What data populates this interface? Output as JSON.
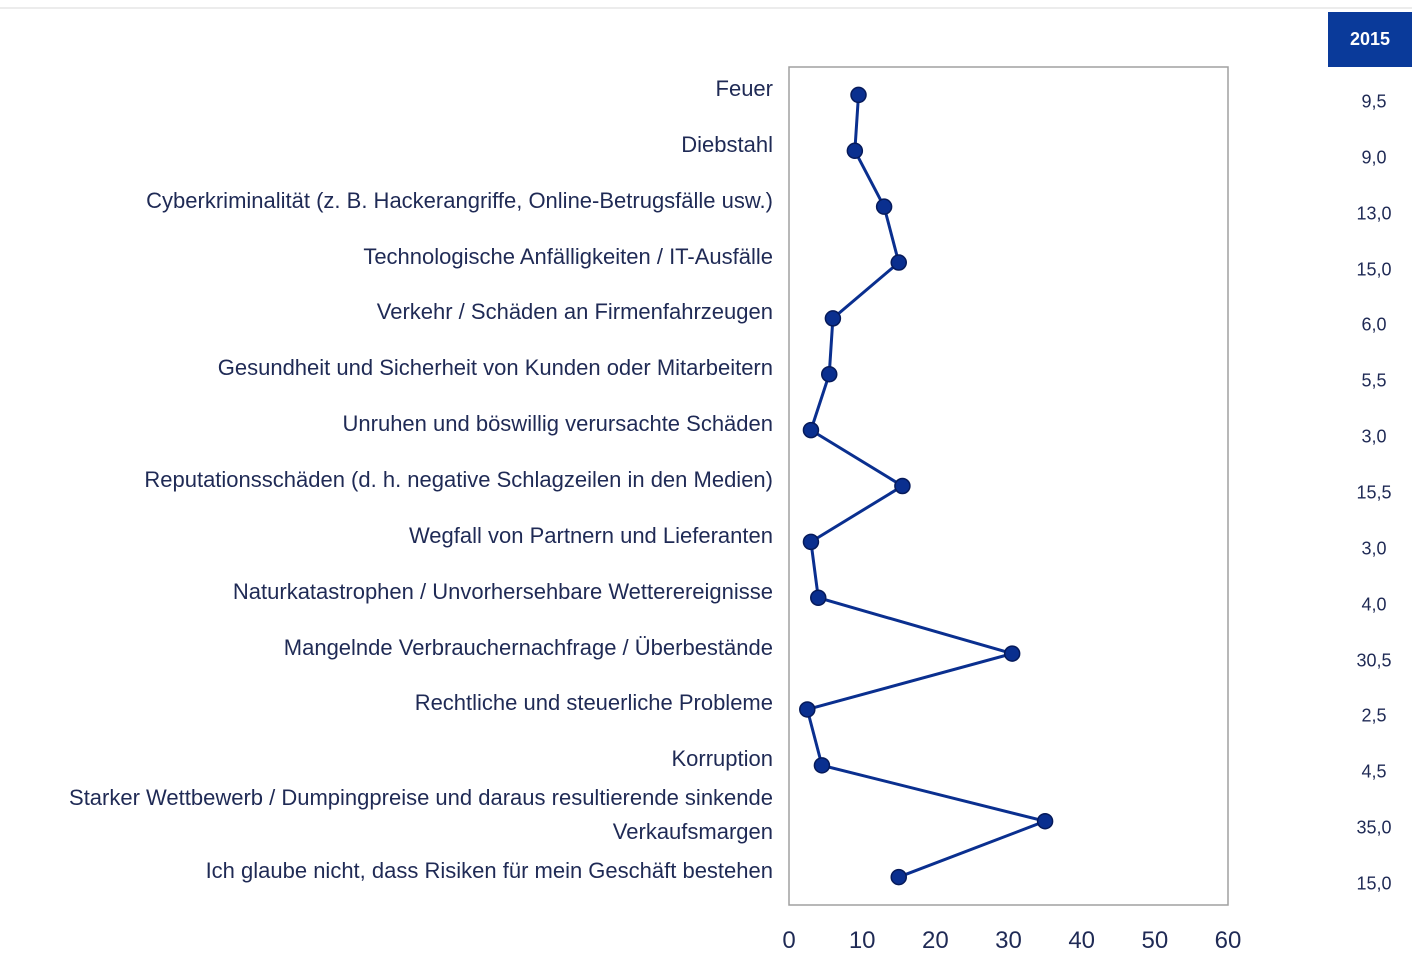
{
  "chart_data": {
    "type": "line",
    "categories": [
      "Feuer",
      "Diebstahl",
      "Cyberkriminalität (z. B. Hackerangriffe, Online-Betrugsfälle usw.)",
      "Technologische Anfälligkeiten / IT-Ausfälle",
      "Verkehr / Schäden an Firmenfahrzeugen",
      "Gesundheit und Sicherheit von Kunden oder Mitarbeitern",
      "Unruhen und böswillig verursachte Schäden",
      "Reputationsschäden (d. h. negative Schlagzeilen in den Medien)",
      "Wegfall von Partnern und Lieferanten",
      "Naturkatastrophen / Unvorhersehbare Wetterereignisse",
      "Mangelnde Verbrauchernachfrage / Überbestände",
      "Rechtliche und steuerliche Probleme",
      "Korruption",
      "Starker Wettbewerb / Dumpingpreise und daraus resultierende sinkende Verkaufsmargen",
      "Ich glaube nicht, dass Risiken für mein Geschäft bestehen"
    ],
    "series": [
      {
        "name": "2015",
        "color": "#0a2f8f",
        "values": [
          9.5,
          9.0,
          13.0,
          15.0,
          6.0,
          5.5,
          3.0,
          15.5,
          3.0,
          4.0,
          30.5,
          2.5,
          4.5,
          35.0,
          15.0
        ],
        "value_labels": [
          "9,5",
          "9,0",
          "13,0",
          "15,0",
          "6,0",
          "5,5",
          "3,0",
          "15,5",
          "3,0",
          "4,0",
          "30,5",
          "2,5",
          "4,5",
          "35,0",
          "15,0"
        ]
      }
    ],
    "xlim": [
      0,
      60
    ],
    "xticks": [
      0,
      10,
      20,
      30,
      40,
      50,
      60
    ]
  }
}
